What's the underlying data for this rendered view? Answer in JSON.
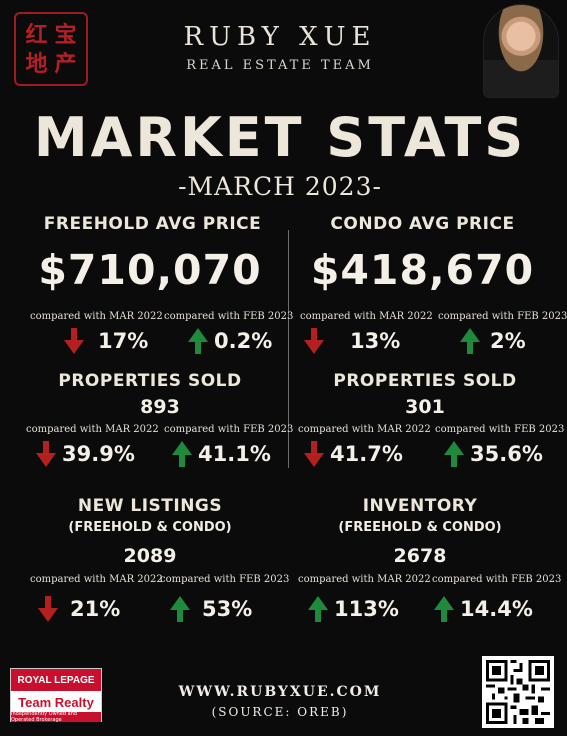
{
  "brand": {
    "seal_chars": [
      "红",
      "宝",
      "地",
      "产"
    ],
    "name": "RUBY XUE",
    "team": "REAL ESTATE TEAM"
  },
  "title": "MARKET STATS",
  "subtitle": "-MARCH 2023-",
  "freehold": {
    "label": "FREEHOLD AVG PRICE",
    "price": "$710,070",
    "cmp_year": "compared with MAR 2022",
    "chg_year": "17%",
    "dir_year": "down",
    "cmp_month": "compared with FEB 2023",
    "chg_month": "0.2%",
    "dir_month": "up",
    "sold_label": "PROPERTIES SOLD",
    "sold": "893",
    "sold_cmp_year": "compared with MAR 2022",
    "sold_chg_year": "39.9%",
    "sold_dir_year": "down",
    "sold_cmp_month": "compared with FEB 2023",
    "sold_chg_month": "41.1%",
    "sold_dir_month": "up"
  },
  "condo": {
    "label": "CONDO AVG PRICE",
    "price": "$418,670",
    "cmp_year": "compared with MAR 2022",
    "chg_year": "13%",
    "dir_year": "down",
    "cmp_month": "compared with FEB 2023",
    "chg_month": "2%",
    "dir_month": "up",
    "sold_label": "PROPERTIES SOLD",
    "sold": "301",
    "sold_cmp_year": "compared with MAR 2022",
    "sold_chg_year": "41.7%",
    "sold_dir_year": "down",
    "sold_cmp_month": "compared with FEB 2023",
    "sold_chg_month": "35.6%",
    "sold_dir_month": "up"
  },
  "listings": {
    "label": "NEW LISTINGS",
    "sublabel": "(FREEHOLD & CONDO)",
    "value": "2089",
    "cmp_year": "compared with MAR 2022",
    "chg_year": "21%",
    "dir_year": "down",
    "cmp_month": "compared with FEB 2023",
    "chg_month": "53%",
    "dir_month": "up"
  },
  "inventory": {
    "label": "INVENTORY",
    "sublabel": "(FREEHOLD & CONDO)",
    "value": "2678",
    "cmp_year": "compared with MAR 2022",
    "chg_year": "113%",
    "dir_year": "up",
    "cmp_month": "compared with FEB 2023",
    "chg_month": "14.4%",
    "dir_month": "up"
  },
  "footer": {
    "website": "WWW.RUBYXUE.COM",
    "source": "(SOURCE: OREB)"
  },
  "logo": {
    "line1": "ROYAL LEPAGE",
    "line2": "Team Realty",
    "line3": "Independently Owned and Operated Brokerage"
  },
  "colors": {
    "up": "#1e8a3c",
    "down": "#b3201f",
    "seal": "#b32025",
    "background": "#0b0b0b"
  }
}
